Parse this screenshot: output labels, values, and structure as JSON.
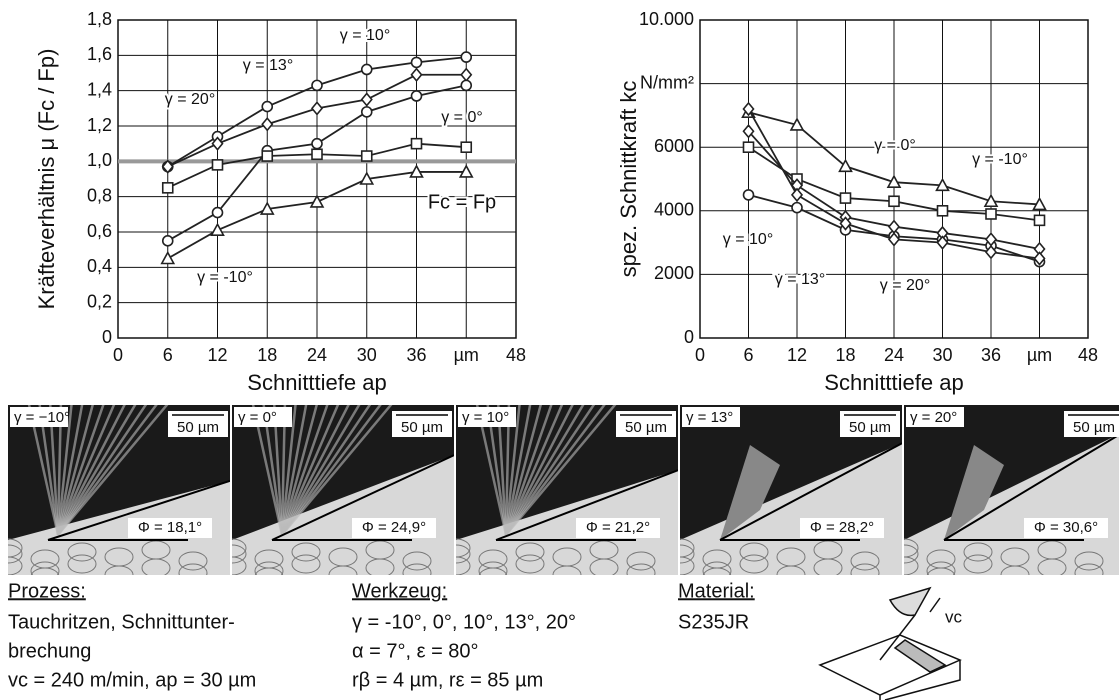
{
  "chart_data": [
    {
      "type": "line",
      "x_label": "Schnitttiefe ap",
      "y_label": "Kräfteverhältnis μ (Fc / Fp)",
      "x": [
        6,
        12,
        18,
        24,
        30,
        36,
        42
      ],
      "xlim": [
        0,
        48
      ],
      "xticks": [
        0,
        6,
        12,
        18,
        24,
        30,
        36,
        {
          "value": 42,
          "label": "µm"
        },
        48
      ],
      "ylim": [
        0,
        1.8
      ],
      "yticks": [
        0,
        {
          "value": 0.2,
          "label": "0,2"
        },
        {
          "value": 0.4,
          "label": "0,4"
        },
        {
          "value": 0.6,
          "label": "0,6"
        },
        {
          "value": 0.8,
          "label": "0,8"
        },
        {
          "value": 1,
          "label": "1,0"
        },
        {
          "value": 1.2,
          "label": "1,2"
        },
        {
          "value": 1.4,
          "label": "1,4"
        },
        {
          "value": 1.6,
          "label": "1,6"
        },
        {
          "value": 1.8,
          "label": "1,8"
        }
      ],
      "grid": true,
      "reference_line": 1,
      "reference_label": "Fc = Fp",
      "series": [
        {
          "name": "γ = 10°",
          "color": "#222222",
          "marker": "circle",
          "values": [
            0.97,
            1.14,
            1.31,
            1.43,
            1.52,
            1.56,
            1.59
          ]
        },
        {
          "name": "γ = 13°",
          "color": "#222222",
          "marker": "diamond",
          "values": [
            0.97,
            1.1,
            1.21,
            1.3,
            1.35,
            1.49,
            1.49
          ]
        },
        {
          "name": "γ = 20°",
          "color": "#222222",
          "marker": "circle",
          "values": [
            0.55,
            0.71,
            1.06,
            1.1,
            1.28,
            1.37,
            1.43
          ]
        },
        {
          "name": "γ = 0°",
          "color": "#222222",
          "marker": "square",
          "values": [
            0.85,
            0.98,
            1.03,
            1.04,
            1.03,
            1.1,
            1.08
          ]
        },
        {
          "name": "γ = -10°",
          "color": "#222222",
          "marker": "triangle",
          "values": [
            0.45,
            0.61,
            0.73,
            0.77,
            0.9,
            0.94,
            0.94
          ]
        }
      ]
    },
    {
      "type": "line",
      "x_label": "Schnitttiefe ap",
      "y_label": "spez. Schnittkraft kc",
      "x": [
        6,
        12,
        18,
        24,
        30,
        36,
        42
      ],
      "xlim": [
        0,
        48
      ],
      "xticks": [
        0,
        6,
        12,
        18,
        24,
        30,
        36,
        {
          "value": 42,
          "label": "µm"
        },
        48
      ],
      "ylim": [
        0,
        10000
      ],
      "yticks": [
        0,
        2000,
        4000,
        6000,
        {
          "value": 8000,
          "label": "N/mm²"
        },
        {
          "value": 10000,
          "label": "10.000"
        }
      ],
      "grid": true,
      "series": [
        {
          "name": "γ = -10°",
          "color": "#222222",
          "marker": "triangle",
          "values": [
            7100,
            6700,
            5400,
            4900,
            4800,
            4300,
            4200
          ]
        },
        {
          "name": "γ = 0°",
          "color": "#222222",
          "marker": "square",
          "values": [
            6000,
            5000,
            4400,
            4300,
            4000,
            3900,
            3700
          ]
        },
        {
          "name": "γ = 10°",
          "color": "#222222",
          "marker": "circle",
          "values": [
            4500,
            4100,
            3400,
            3200,
            3100,
            2900,
            2400
          ]
        },
        {
          "name": "γ = 13°",
          "color": "#222222",
          "marker": "diamond",
          "values": [
            6500,
            4800,
            3800,
            3500,
            3300,
            3100,
            2800
          ]
        },
        {
          "name": "γ = 20°",
          "color": "#222222",
          "marker": "diamond",
          "values": [
            7200,
            4500,
            3600,
            3100,
            3000,
            2700,
            2500
          ]
        }
      ]
    }
  ],
  "micrographs": [
    {
      "rake": "γ = −10°",
      "scale": "50 µm",
      "shear_angle": "Φ = 18,1°"
    },
    {
      "rake": "γ = 0°",
      "scale": "50 µm",
      "shear_angle": "Φ = 24,9°"
    },
    {
      "rake": "γ = 10°",
      "scale": "50 µm",
      "shear_angle": "Φ = 21,2°"
    },
    {
      "rake": "γ = 13°",
      "scale": "50 µm",
      "shear_angle": "Φ = 28,2°"
    },
    {
      "rake": "γ = 20°",
      "scale": "50 µm",
      "shear_angle": "Φ = 30,6°"
    }
  ],
  "info": [
    {
      "heading": "Prozess:",
      "lines": [
        "Tauchritzen, Schnittunter-",
        "brechung",
        "vc = 240 m/min, ap = 30 µm"
      ]
    },
    {
      "heading": "Werkzeug:",
      "lines": [
        "γ = -10°, 0°, 10°, 13°, 20°",
        "α = 7°, ε = 80°",
        "rβ = 4 µm, rε = 85 µm"
      ]
    },
    {
      "heading": "Material:",
      "lines": [
        "S235JR"
      ]
    }
  ],
  "tool_label": "vc"
}
